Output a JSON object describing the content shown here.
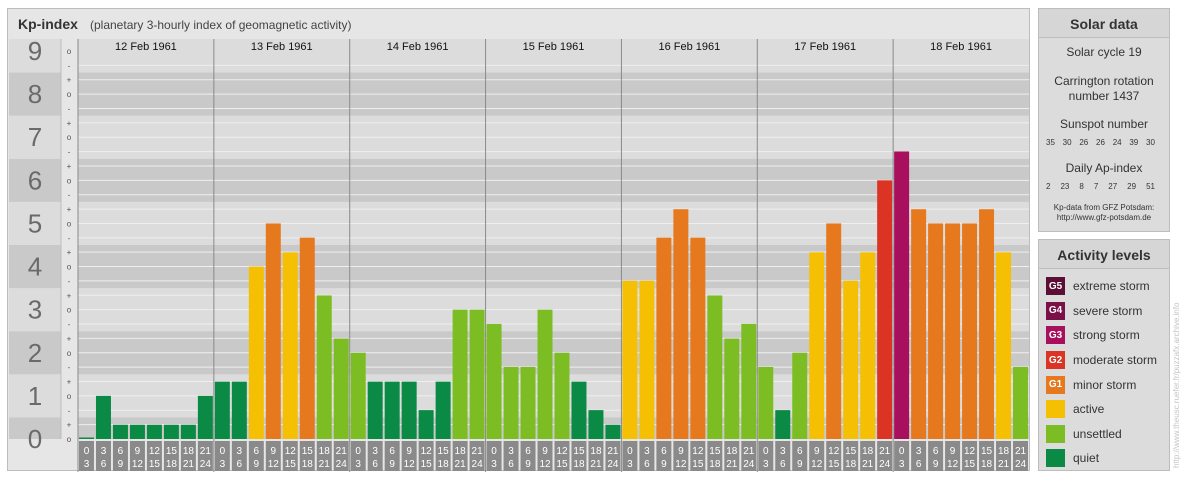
{
  "header": {
    "title": "Kp-index",
    "subtitle": "(planetary 3-hourly index of geomagnetic activity)"
  },
  "solar": {
    "title": "Solar data",
    "cycle": "Solar cycle 19",
    "carrington_line1": "Carrington rotation",
    "carrington_line2": "number 1437",
    "sunspot_label": "Sunspot number",
    "sunspot_values": [
      "35",
      "30",
      "26",
      "26",
      "24",
      "39",
      "30"
    ],
    "ap_label": "Daily Ap-index",
    "ap_values": [
      "2",
      "23",
      "8",
      "7",
      "27",
      "29",
      "51"
    ],
    "credit_line1": "Kp-data from GFZ Potsdam:",
    "credit_line2": "http://www.gfz-potsdam.de"
  },
  "activity": {
    "title": "Activity levels",
    "items": [
      {
        "code": "G5",
        "label": "extreme storm",
        "color": "#5b0f36"
      },
      {
        "code": "G4",
        "label": "severe storm",
        "color": "#7b1049"
      },
      {
        "code": "G3",
        "label": "strong storm",
        "color": "#a8105d"
      },
      {
        "code": "G2",
        "label": "moderate storm",
        "color": "#db3425"
      },
      {
        "code": "G1",
        "label": "minor storm",
        "color": "#e6781d"
      },
      {
        "code": "",
        "label": "active",
        "color": "#f5c003"
      },
      {
        "code": "",
        "label": "unsettled",
        "color": "#7cbd23"
      },
      {
        "code": "",
        "label": "quiet",
        "color": "#0a8a44"
      }
    ]
  },
  "watermark": "http://www.theusc.ruefer.fr/puzzafx.archive.info",
  "chart_data": {
    "type": "bar",
    "ylim": [
      0,
      9
    ],
    "y_ticks": [
      "0",
      "1",
      "2",
      "3",
      "4",
      "5",
      "6",
      "7",
      "8",
      "9"
    ],
    "minor_ticks": [
      "o",
      "+",
      "-"
    ],
    "days": [
      "12 Feb 1961",
      "13 Feb 1961",
      "14 Feb 1961",
      "15 Feb 1961",
      "16 Feb 1961",
      "17 Feb 1961",
      "18 Feb 1961"
    ],
    "interval_start": [
      "0",
      "3",
      "6",
      "9",
      "12",
      "15",
      "18",
      "21"
    ],
    "interval_end": [
      "3",
      "6",
      "9",
      "12",
      "15",
      "18",
      "21",
      "24"
    ],
    "values": [
      0.0,
      1.0,
      0.33,
      0.33,
      0.33,
      0.33,
      0.33,
      1.0,
      1.33,
      1.33,
      4.0,
      5.0,
      4.33,
      4.67,
      3.33,
      2.33,
      2.0,
      1.33,
      1.33,
      1.33,
      0.67,
      1.33,
      3.0,
      3.0,
      2.67,
      1.67,
      1.67,
      3.0,
      2.0,
      1.33,
      0.67,
      0.33,
      3.67,
      3.67,
      4.67,
      5.33,
      4.67,
      3.33,
      2.33,
      2.67,
      1.67,
      0.67,
      2.0,
      4.33,
      5.0,
      3.67,
      4.33,
      6.0,
      6.67,
      5.33,
      5.0,
      5.0,
      5.0,
      5.33,
      4.33,
      1.67
    ]
  }
}
